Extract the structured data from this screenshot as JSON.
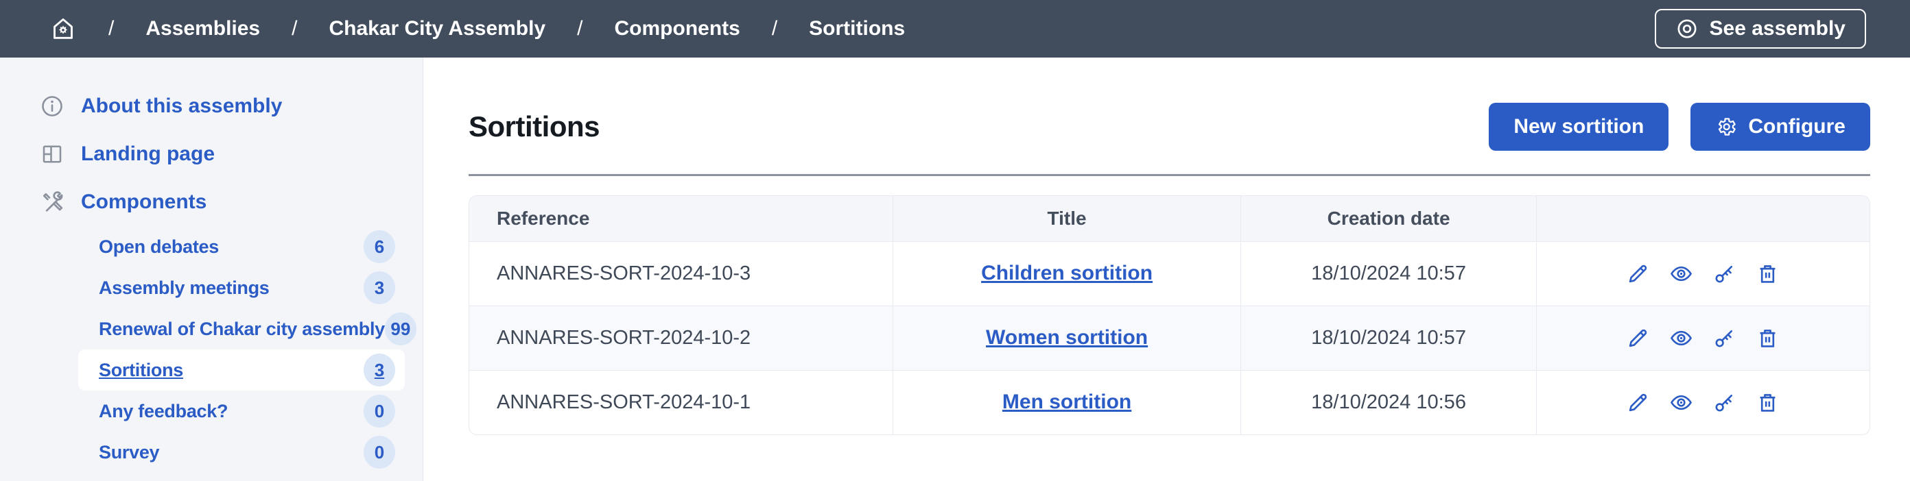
{
  "topbar": {
    "separator": "/",
    "breadcrumb": [
      "Assemblies",
      "Chakar City Assembly",
      "Components",
      "Sortitions"
    ],
    "see_assembly_label": "See assembly"
  },
  "sidebar": {
    "items": [
      {
        "label": "About this assembly",
        "icon": "info-icon"
      },
      {
        "label": "Landing page",
        "icon": "layout-icon"
      },
      {
        "label": "Components",
        "icon": "tools-icon"
      }
    ],
    "subitems": [
      {
        "label": "Open debates",
        "count": "6",
        "selected": false
      },
      {
        "label": "Assembly meetings",
        "count": "3",
        "selected": false
      },
      {
        "label": "Renewal of Chakar city assembly",
        "count": "99",
        "selected": false
      },
      {
        "label": "Sortitions",
        "count": "3",
        "selected": true
      },
      {
        "label": "Any feedback?",
        "count": "0",
        "selected": false
      },
      {
        "label": "Survey",
        "count": "0",
        "selected": false
      }
    ]
  },
  "main": {
    "title": "Sortitions",
    "new_button_label": "New sortition",
    "configure_button_label": "Configure",
    "table": {
      "headers": [
        "Reference",
        "Title",
        "Creation date",
        ""
      ],
      "rows": [
        {
          "reference": "ANNARES-SORT-2024-10-3",
          "title": "Children sortition",
          "date": "18/10/2024 10:57"
        },
        {
          "reference": "ANNARES-SORT-2024-10-2",
          "title": "Women sortition",
          "date": "18/10/2024 10:57"
        },
        {
          "reference": "ANNARES-SORT-2024-10-1",
          "title": "Men sortition",
          "date": "18/10/2024 10:56"
        }
      ],
      "row_actions": [
        "edit",
        "preview",
        "permissions",
        "delete"
      ]
    }
  },
  "colors": {
    "accent_blue": "#2b5cc6",
    "topbar_slate": "#414c5c",
    "sidebar_bg": "#f3f5f9",
    "badge_bg": "#dbe6f7",
    "table_border": "#e7ebf1"
  }
}
